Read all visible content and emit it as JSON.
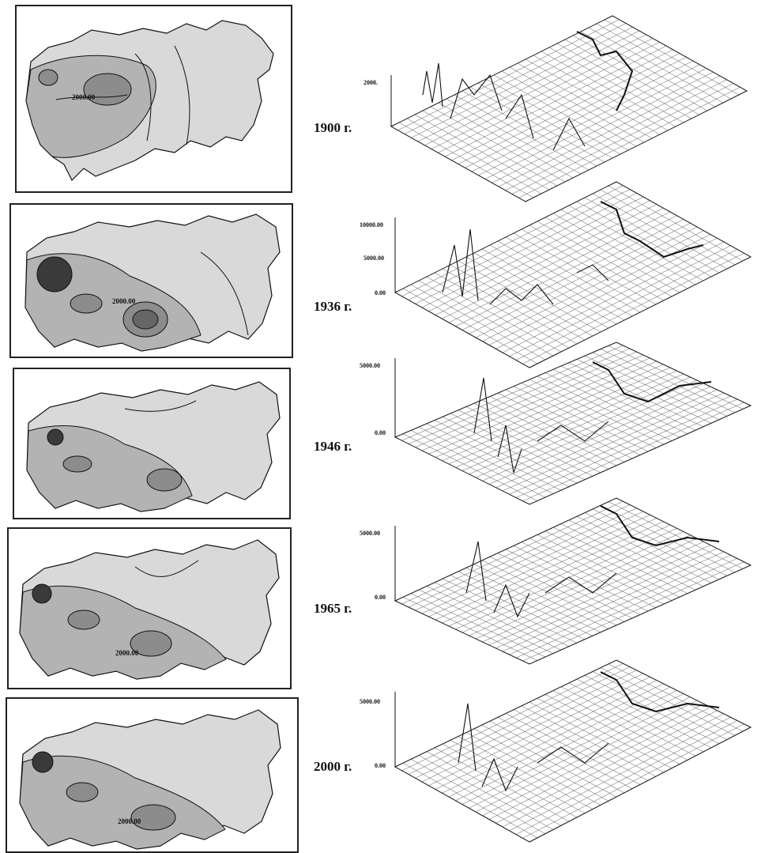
{
  "panels": [
    {
      "year": "1900 г.",
      "contour_label": "2000.00",
      "axis_ticks": [
        "2000."
      ]
    },
    {
      "year": "1936 г.",
      "contour_label": "2000.00",
      "axis_ticks": [
        "10000.00",
        "5000.00",
        "0.00"
      ]
    },
    {
      "year": "1946 г.",
      "contour_label": "",
      "axis_ticks": [
        "5000.00",
        "0.00"
      ]
    },
    {
      "year": "1965 г.",
      "contour_label": "2000.00",
      "axis_ticks": [
        "5000.00",
        "0.00"
      ]
    },
    {
      "year": "2000 г.",
      "contour_label": "2000.00",
      "axis_ticks": [
        "5000.00",
        "0.00"
      ]
    }
  ],
  "colors": {
    "land": "#d9d9d9",
    "shade_mid": "#b3b3b3",
    "shade_dark": "#8c8c8c",
    "shade_peak": "#3a3a3a",
    "lines": "#111111"
  }
}
